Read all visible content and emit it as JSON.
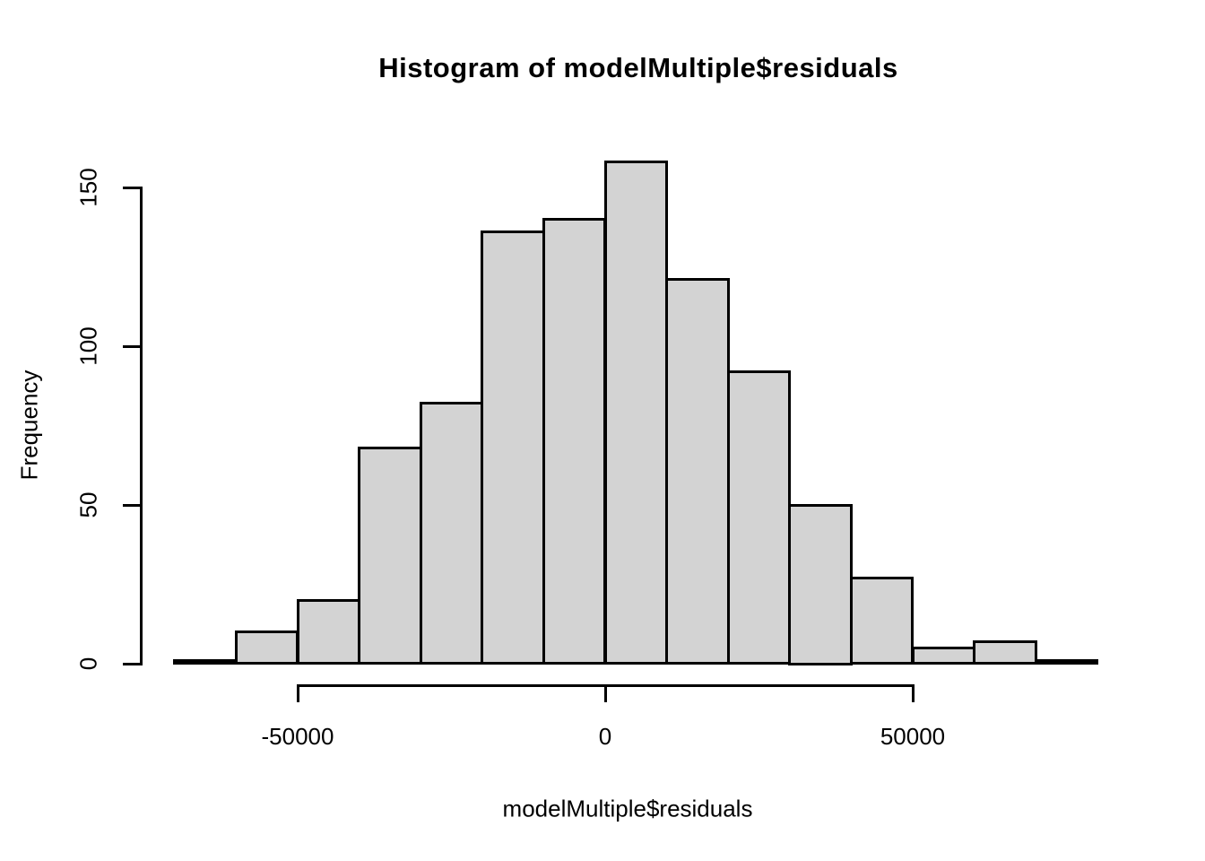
{
  "chart_data": {
    "type": "bar",
    "subtype": "histogram",
    "title": "Histogram of modelMultiple$residuals",
    "xlabel": "modelMultiple$residuals",
    "ylabel": "Frequency",
    "breaks": [
      -70000,
      -60000,
      -50000,
      -40000,
      -30000,
      -20000,
      -10000,
      0,
      10000,
      20000,
      30000,
      40000,
      50000,
      60000,
      70000,
      80000
    ],
    "counts": [
      1,
      10,
      20,
      68,
      82,
      136,
      140,
      158,
      121,
      92,
      50,
      27,
      5,
      7,
      1
    ],
    "x_ticks": [
      -50000,
      0,
      50000
    ],
    "x_tick_labels": [
      "-50000",
      "0",
      "50000"
    ],
    "y_ticks": [
      0,
      50,
      100,
      150
    ],
    "y_tick_labels": [
      "0",
      "50",
      "100",
      "150"
    ],
    "xlim": [
      -70000,
      80000
    ],
    "ylim": [
      0,
      158
    ],
    "grid": "off",
    "legend": "none",
    "bar_fill": "#d3d3d3",
    "bar_border": "#000000",
    "axis_color": "#000000",
    "text_color": "#000000",
    "background": "#ffffff"
  }
}
